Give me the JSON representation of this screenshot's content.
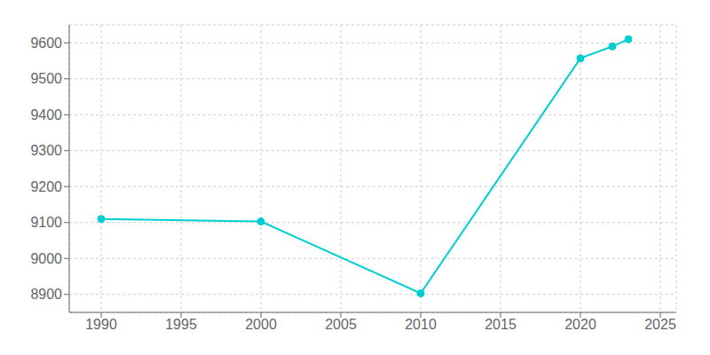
{
  "chart_data": {
    "type": "line",
    "x": [
      1990,
      2000,
      2010,
      2020,
      2022,
      2023
    ],
    "values": [
      9110,
      9103,
      8903,
      9557,
      9590,
      9610
    ],
    "color": "#00CED1",
    "marker": "circle",
    "xlim": [
      1988,
      2026
    ],
    "ylim": [
      8850,
      9650
    ],
    "xticks": [
      1990,
      1995,
      2000,
      2005,
      2010,
      2015,
      2020,
      2025
    ],
    "yticks": [
      8900,
      9000,
      9100,
      9200,
      9300,
      9400,
      9500,
      9600
    ],
    "grid": true
  }
}
